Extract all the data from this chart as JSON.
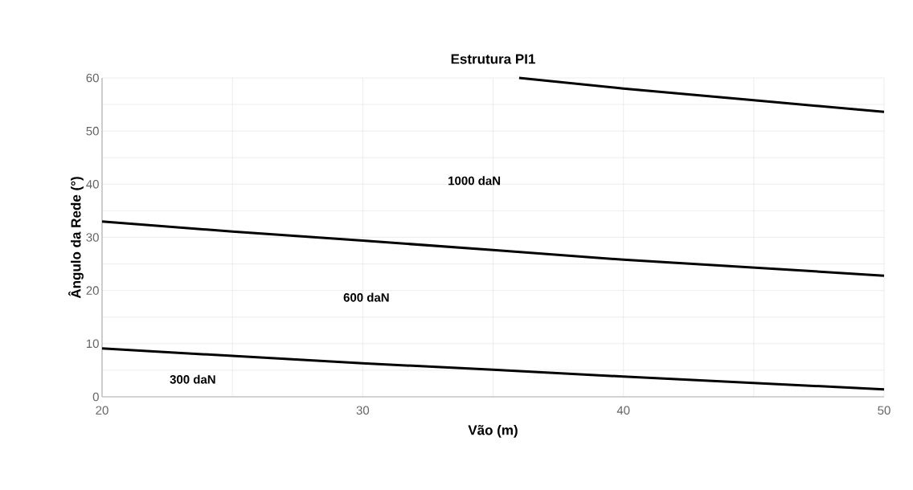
{
  "chart_data": {
    "type": "line",
    "title": "Estrutura PI1",
    "xlabel": "Vão (m)",
    "ylabel": "Ângulo da Rede (°)",
    "xlim": [
      20,
      50
    ],
    "xticks": [
      20,
      30,
      40,
      50
    ],
    "ylim": [
      0,
      60
    ],
    "yticks": [
      0,
      10,
      20,
      30,
      40,
      50,
      60
    ],
    "grid": true,
    "marker": "none",
    "line_style": "solid",
    "series": [
      {
        "color": "#000000",
        "x": [
          36,
          40,
          45,
          50
        ],
        "values": [
          60,
          58.0,
          55.8,
          53.6
        ]
      },
      {
        "color": "#000000",
        "x": [
          20,
          25,
          30,
          35,
          40,
          45,
          50
        ],
        "values": [
          33.0,
          31.1,
          29.4,
          27.6,
          25.8,
          24.3,
          22.8
        ]
      },
      {
        "color": "#000000",
        "x": [
          20,
          25,
          30,
          35,
          40,
          45,
          50
        ],
        "values": [
          9.1,
          7.7,
          6.3,
          5.1,
          3.8,
          2.6,
          1.4
        ]
      }
    ],
    "annotations": [
      "1000 daN",
      "600 daN",
      "300 daN"
    ]
  }
}
